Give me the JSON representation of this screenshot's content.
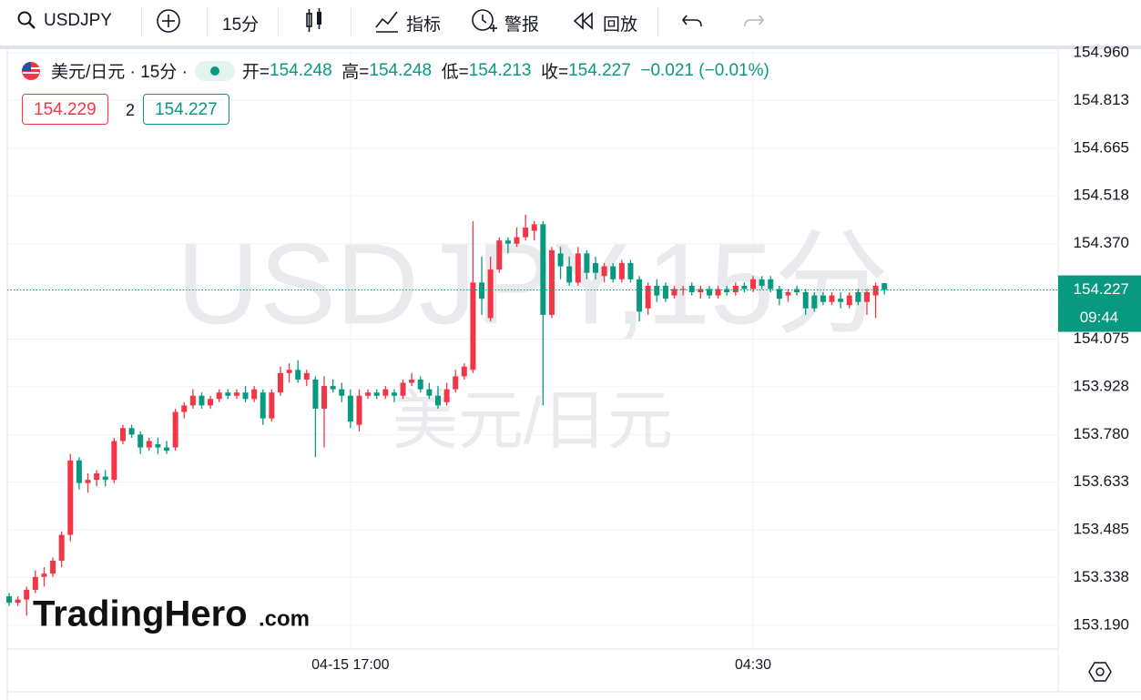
{
  "toolbar": {
    "symbol": "USDJPY",
    "interval": "15分",
    "indicators": "指标",
    "alerts": "警报",
    "replay": "回放"
  },
  "legend": {
    "title": "美元/日元 · 15分 ·",
    "open_label": "开=",
    "high_label": "高=",
    "low_label": "低=",
    "close_label": "收=",
    "change": "−0.021 (−0.01%)",
    "bid": 154.229,
    "spread": 2,
    "ask": 154.227
  },
  "countdown": "09:44",
  "watermark": {
    "line1": "USDJPY,15分",
    "line2": "美元/日元"
  },
  "logo": {
    "name": "TradingHero",
    "suffix": ".com"
  },
  "chart_data": {
    "type": "candlestick",
    "x": [
      null,
      null,
      null,
      null,
      null,
      null,
      null,
      null,
      null,
      null,
      null,
      null,
      null,
      null,
      null,
      null,
      null,
      null,
      null,
      null,
      null,
      null,
      null,
      null,
      null,
      null,
      null,
      null,
      null,
      null,
      null,
      null,
      null,
      null,
      null,
      null,
      null,
      null,
      null,
      "04-15 17:00",
      null,
      null,
      null,
      null,
      null,
      null,
      null,
      null,
      null,
      null,
      null,
      null,
      null,
      null,
      null,
      null,
      null,
      null,
      null,
      null,
      null,
      null,
      null,
      null,
      null,
      null,
      null,
      null,
      null,
      null,
      null,
      null,
      null,
      null,
      null,
      null,
      null,
      null,
      null,
      null,
      null,
      null,
      null,
      null,
      null,
      "04:30",
      null,
      null,
      null,
      null,
      null,
      null,
      null,
      null,
      null,
      null,
      null,
      null,
      null,
      null,
      null
    ],
    "open": [
      153.28,
      153.26,
      153.27,
      153.3,
      153.34,
      153.35,
      153.39,
      153.47,
      153.7,
      153.63,
      153.64,
      153.65,
      153.64,
      153.76,
      153.8,
      153.78,
      153.74,
      153.75,
      153.74,
      153.74,
      153.85,
      153.87,
      153.9,
      153.87,
      153.89,
      153.91,
      153.9,
      153.91,
      153.89,
      153.91,
      153.83,
      153.91,
      153.97,
      153.98,
      153.95,
      153.95,
      153.86,
      153.93,
      153.92,
      153.9,
      153.81,
      153.9,
      153.91,
      153.9,
      153.91,
      153.9,
      153.94,
      153.95,
      153.92,
      153.9,
      153.88,
      153.92,
      153.96,
      153.98,
      154.25,
      154.14,
      154.29,
      154.38,
      154.37,
      154.39,
      154.41,
      154.43,
      154.15,
      154.34,
      154.3,
      154.25,
      154.34,
      154.31,
      154.27,
      154.3,
      154.26,
      154.31,
      154.26,
      154.17,
      154.24,
      154.24,
      154.21,
      154.23,
      154.24,
      154.22,
      154.23,
      154.21,
      154.23,
      154.22,
      154.24,
      154.23,
      154.26,
      154.26,
      154.23,
      154.21,
      154.23,
      154.22,
      154.21,
      154.21,
      154.19,
      154.2,
      154.18,
      154.22,
      154.19,
      154.21,
      154.248
    ],
    "high": [
      153.29,
      153.28,
      153.31,
      153.36,
      153.37,
      153.4,
      153.48,
      153.72,
      153.71,
      153.66,
      153.67,
      153.67,
      153.77,
      153.81,
      153.81,
      153.79,
      153.77,
      153.77,
      153.76,
      153.86,
      153.88,
      153.92,
      153.91,
      153.9,
      153.92,
      153.92,
      153.92,
      153.93,
      153.93,
      153.92,
      153.92,
      153.99,
      154.0,
      154.01,
      153.98,
      153.96,
      153.96,
      153.95,
      153.94,
      153.92,
      153.92,
      153.92,
      153.92,
      153.93,
      153.92,
      153.95,
      153.97,
      153.96,
      153.94,
      153.93,
      153.94,
      153.98,
      154.0,
      154.44,
      154.33,
      154.33,
      154.39,
      154.39,
      154.42,
      154.46,
      154.44,
      154.44,
      154.36,
      154.36,
      154.33,
      154.36,
      154.35,
      154.33,
      154.31,
      154.31,
      154.32,
      154.32,
      154.27,
      154.25,
      154.26,
      154.25,
      154.24,
      154.24,
      154.25,
      154.24,
      154.24,
      154.24,
      154.24,
      154.25,
      154.25,
      154.27,
      154.27,
      154.27,
      154.24,
      154.23,
      154.24,
      154.23,
      154.22,
      154.22,
      154.22,
      154.22,
      154.22,
      154.23,
      154.23,
      154.25,
      154.248
    ],
    "low": [
      153.25,
      153.25,
      153.22,
      153.29,
      153.31,
      153.34,
      153.37,
      153.45,
      153.61,
      153.6,
      153.62,
      153.62,
      153.63,
      153.75,
      153.77,
      153.72,
      153.73,
      153.72,
      153.72,
      153.73,
      153.83,
      153.86,
      153.86,
      153.86,
      153.88,
      153.89,
      153.89,
      153.88,
      153.88,
      153.81,
      153.82,
      153.9,
      153.94,
      153.94,
      153.93,
      153.71,
      153.74,
      153.91,
      153.88,
      153.8,
      153.79,
      153.89,
      153.89,
      153.89,
      153.88,
      153.89,
      153.93,
      153.91,
      153.89,
      153.86,
      153.87,
      153.91,
      153.95,
      153.97,
      154.15,
      154.13,
      154.28,
      154.34,
      154.36,
      154.38,
      154.38,
      153.87,
      154.14,
      154.26,
      154.24,
      154.24,
      154.26,
      154.26,
      154.25,
      154.25,
      154.25,
      154.25,
      154.13,
      154.15,
      154.19,
      154.19,
      154.2,
      154.21,
      154.21,
      154.2,
      154.2,
      154.2,
      154.21,
      154.21,
      154.22,
      154.22,
      154.23,
      154.22,
      154.18,
      154.19,
      154.21,
      154.15,
      154.16,
      154.18,
      154.18,
      154.17,
      154.17,
      154.18,
      154.15,
      154.14,
      154.213
    ],
    "close": [
      153.26,
      153.27,
      153.3,
      153.34,
      153.35,
      153.39,
      153.47,
      153.7,
      153.63,
      153.64,
      153.66,
      153.64,
      153.76,
      153.8,
      153.78,
      153.74,
      153.76,
      153.74,
      153.73,
      153.85,
      153.87,
      153.9,
      153.87,
      153.89,
      153.91,
      153.9,
      153.91,
      153.89,
      153.92,
      153.83,
      153.91,
      153.97,
      153.98,
      153.95,
      153.97,
      153.86,
      153.93,
      153.92,
      153.9,
      153.82,
      153.9,
      153.91,
      153.9,
      153.92,
      153.9,
      153.94,
      153.95,
      153.92,
      153.9,
      153.87,
      153.92,
      153.96,
      153.99,
      154.25,
      154.2,
      154.29,
      154.38,
      154.37,
      154.39,
      154.42,
      154.43,
      154.15,
      154.35,
      154.3,
      154.25,
      154.34,
      154.28,
      154.28,
      154.3,
      154.26,
      154.31,
      154.26,
      154.16,
      154.24,
      154.21,
      154.2,
      154.23,
      154.23,
      154.22,
      154.23,
      154.21,
      154.23,
      154.22,
      154.24,
      154.23,
      154.26,
      154.24,
      154.23,
      154.2,
      154.22,
      154.22,
      154.17,
      154.17,
      154.19,
      154.21,
      154.19,
      154.21,
      154.19,
      154.22,
      154.24,
      154.227
    ],
    "up_color": "#f23645",
    "down_color": "#089981",
    "ylim": [
      153.117,
      154.977
    ],
    "yticks": [
      {
        "value": 154.96,
        "label": "154.960"
      },
      154.813,
      154.665,
      154.518,
      {
        "value": 154.37,
        "label": "154.370"
      },
      154.075,
      153.928,
      {
        "value": 153.78,
        "label": "153.780"
      },
      153.633,
      153.485,
      153.338,
      {
        "value": 153.19,
        "label": "153.190"
      }
    ],
    "grid": true
  }
}
